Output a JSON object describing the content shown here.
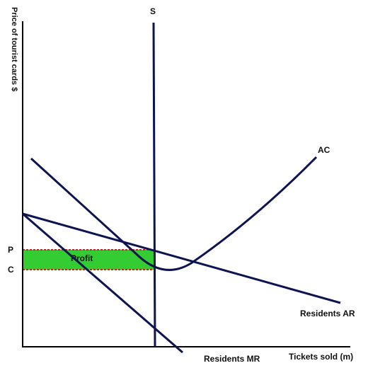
{
  "chart_data": {
    "type": "line",
    "title": "",
    "ylabel": "Price of tourist cards $",
    "xlabel": "Tickets sold (m)",
    "y_ticks": [
      {
        "label": "P"
      },
      {
        "label": "C"
      }
    ],
    "curves": [
      {
        "key": "supply",
        "label": "S"
      },
      {
        "key": "ac",
        "label": "AC"
      },
      {
        "key": "ar",
        "label": "Residents AR"
      },
      {
        "key": "mr",
        "label": "Residents MR"
      }
    ],
    "region_label": "Profit",
    "colors": {
      "curve": "#0d1450",
      "axis": "#000000",
      "profit_fill": "#33cc33",
      "profit_border": "#cc2222"
    }
  }
}
